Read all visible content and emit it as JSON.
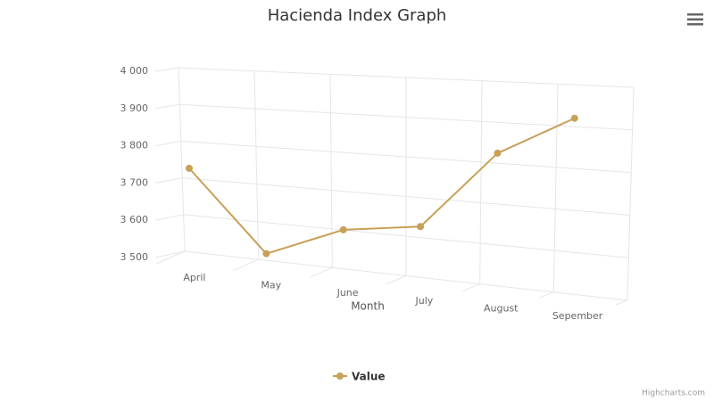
{
  "chart_data": {
    "type": "line",
    "title": "Hacienda Index Graph",
    "x_label": "Month",
    "categories": [
      "April",
      "May",
      "June",
      "July",
      "August",
      "Sepember"
    ],
    "series": [
      {
        "name": "Value",
        "color": "#c8a058",
        "values": [
          3740,
          3520,
          3590,
          3605,
          3790,
          3875
        ]
      }
    ],
    "ylim": [
      3500,
      4000
    ],
    "yticks": [
      {
        "value": 3500,
        "label": "3 500"
      },
      {
        "value": 3600,
        "label": "3 600"
      },
      {
        "value": 3700,
        "label": "3 700"
      },
      {
        "value": 3800,
        "label": "3 800"
      },
      {
        "value": 3900,
        "label": "3 900"
      },
      {
        "value": 4000,
        "label": "4 000"
      }
    ],
    "grid": true,
    "legend": "bottom",
    "credits": "Highcharts.com"
  }
}
